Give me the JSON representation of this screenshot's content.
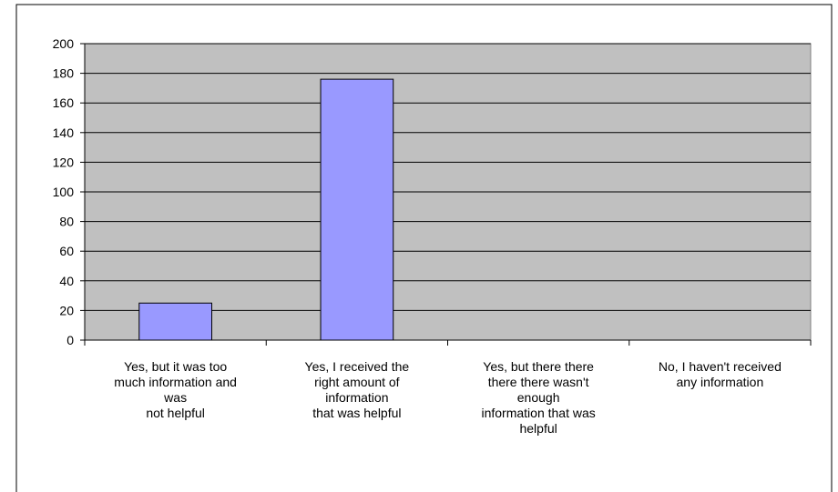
{
  "chart_data": {
    "type": "bar",
    "categories": [
      "Yes, but it was too\nmuch information and\nwas\nnot helpful",
      "Yes, I received the\nright amount of\ninformation\nthat was helpful",
      "Yes, but there there\nthere there wasn't\nenough\ninformation that was\nhelpful",
      "No, I haven't received\nany information"
    ],
    "values": [
      25,
      176,
      0,
      0
    ],
    "color": "#9999ff",
    "ylim": [
      0,
      200
    ],
    "yticks": [
      0,
      20,
      40,
      60,
      80,
      100,
      120,
      140,
      160,
      180,
      200
    ],
    "grid": true
  }
}
